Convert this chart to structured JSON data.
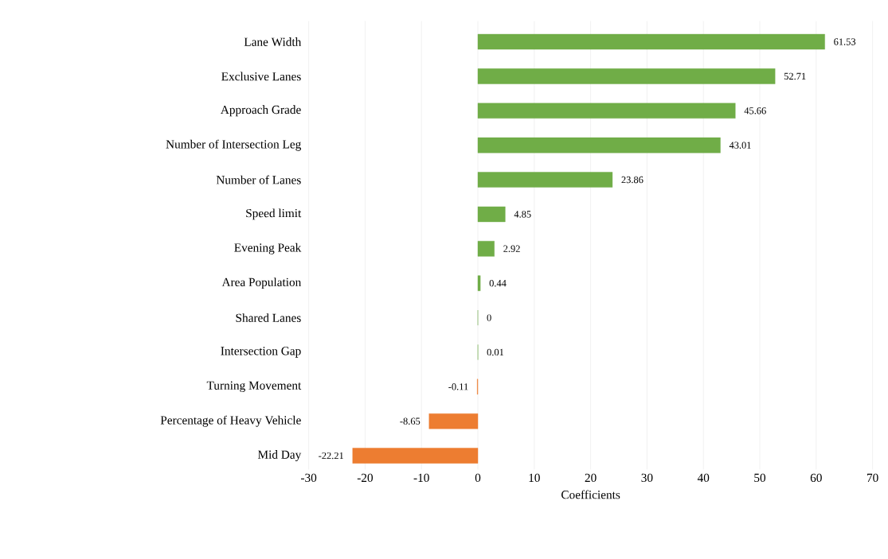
{
  "chart_data": {
    "type": "bar",
    "orientation": "horizontal",
    "xlabel": "Coefficients",
    "categories": [
      "Lane Width",
      "Exclusive Lanes",
      "Approach Grade",
      "Number of Intersection Leg",
      "Number of Lanes",
      "Speed limit",
      "Evening Peak",
      "Area Population",
      "Shared Lanes",
      "Intersection Gap",
      "Turning Movement",
      "Percentage of Heavy Vehicle",
      "Mid Day"
    ],
    "values": [
      61.53,
      52.71,
      45.66,
      43.01,
      23.86,
      4.85,
      2.92,
      0.44,
      0,
      0.01,
      -0.11,
      -8.65,
      -22.21
    ],
    "colors": [
      "#70ad47",
      "#70ad47",
      "#70ad47",
      "#70ad47",
      "#70ad47",
      "#70ad47",
      "#70ad47",
      "#70ad47",
      "#70ad47",
      "#70ad47",
      "#ed7d31",
      "#ed7d31",
      "#ed7d31"
    ],
    "data_labels": true,
    "grid": "x",
    "xlim": [
      -30,
      70
    ],
    "xticks": [
      -30,
      -20,
      -10,
      0,
      10,
      20,
      30,
      40,
      50,
      60,
      70
    ]
  }
}
